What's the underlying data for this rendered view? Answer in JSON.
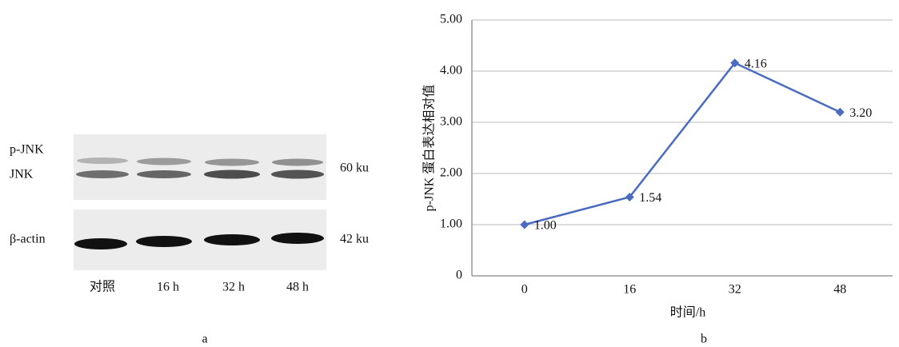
{
  "panel_a": {
    "row_labels": [
      "p-JNK",
      "JNK",
      "β-actin"
    ],
    "size_labels": [
      "60 ku",
      "42 ku"
    ],
    "lane_labels": [
      "对照",
      "16 h",
      "32 h",
      "48 h"
    ],
    "panel_label": "a"
  },
  "chart_data": {
    "type": "line",
    "panel_label": "b",
    "x_label": "时间/h",
    "y_label": "p-JNK 蛋白表达相对值",
    "categories": [
      "0",
      "16",
      "32",
      "48"
    ],
    "values": [
      1.0,
      1.54,
      4.16,
      3.2
    ],
    "value_labels": [
      "1.00",
      "1.54",
      "4.16",
      "3.20"
    ],
    "color": "#4a6bbf",
    "ylim": [
      0,
      5
    ],
    "yticks": [
      0,
      {
        "value": 1,
        "label": "1.00"
      },
      {
        "value": 2,
        "label": "2.00"
      },
      {
        "value": 3,
        "label": "3.00"
      },
      {
        "value": 4,
        "label": "4.00"
      },
      {
        "value": 5,
        "label": "5.00"
      }
    ],
    "grid": true
  }
}
